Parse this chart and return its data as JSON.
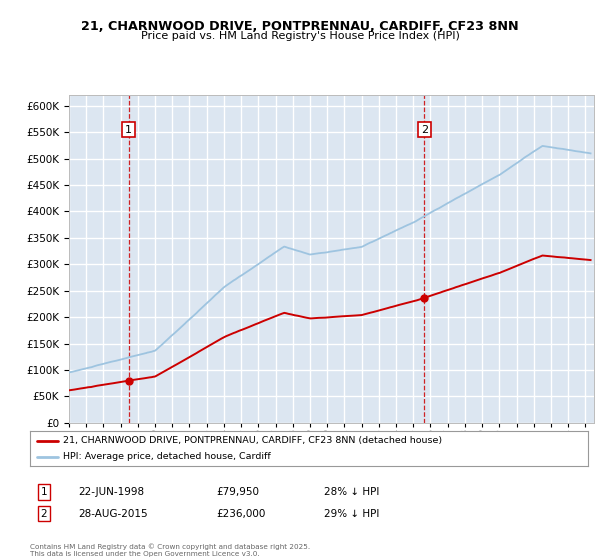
{
  "title_line1": "21, CHARNWOOD DRIVE, PONTPRENNAU, CARDIFF, CF23 8NN",
  "title_line2": "Price paid vs. HM Land Registry's House Price Index (HPI)",
  "bg_color": "#ffffff",
  "plot_bg_color": "#dce6f1",
  "grid_color": "#ffffff",
  "hpi_color": "#9ec4e0",
  "price_color": "#cc0000",
  "marker1_date_x": 1998.47,
  "marker2_date_x": 2015.65,
  "sale1_label": "1",
  "sale1_date": "22-JUN-1998",
  "sale1_price": "£79,950",
  "sale1_hpi": "28% ↓ HPI",
  "sale2_label": "2",
  "sale2_date": "28-AUG-2015",
  "sale2_price": "£236,000",
  "sale2_hpi": "29% ↓ HPI",
  "legend_line1": "21, CHARNWOOD DRIVE, PONTPRENNAU, CARDIFF, CF23 8NN (detached house)",
  "legend_line2": "HPI: Average price, detached house, Cardiff",
  "footer": "Contains HM Land Registry data © Crown copyright and database right 2025.\nThis data is licensed under the Open Government Licence v3.0.",
  "ylim_min": 0,
  "ylim_max": 620000,
  "xlim_min": 1995.0,
  "xlim_max": 2025.5
}
